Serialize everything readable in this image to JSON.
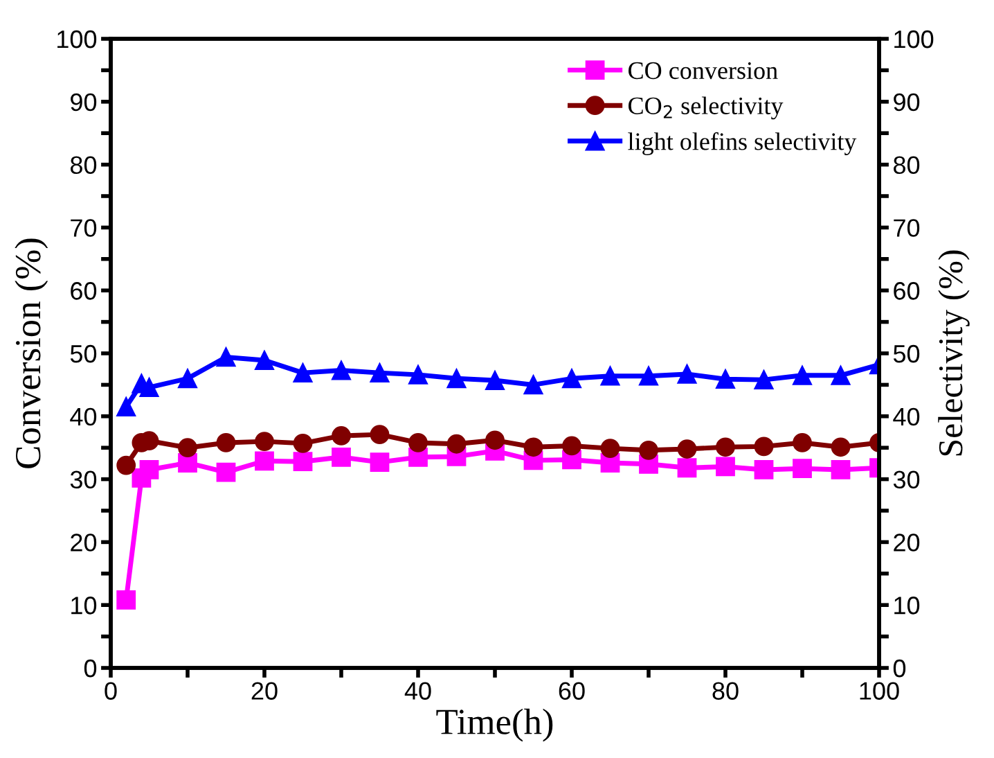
{
  "chart_data": {
    "type": "line",
    "xlabel": "Time(h)",
    "ylabel": "Conversion (%)",
    "y2label": "Selectivity (%)",
    "x": [
      2,
      4,
      5,
      10,
      15,
      20,
      25,
      30,
      35,
      40,
      45,
      50,
      55,
      60,
      65,
      70,
      75,
      80,
      85,
      90,
      95,
      100
    ],
    "series": [
      {
        "name": "CO conversion",
        "color": "#ff00ff",
        "marker": "square",
        "values": [
          10.8,
          30.2,
          31.5,
          32.6,
          31.1,
          32.9,
          32.8,
          33.5,
          32.7,
          33.5,
          33.6,
          34.5,
          33.0,
          33.1,
          32.6,
          32.4,
          31.8,
          32.0,
          31.5,
          31.7,
          31.5,
          31.8
        ]
      },
      {
        "name": "CO$_{2}$ selectivity",
        "color": "#800000",
        "marker": "circle",
        "axis": "y2",
        "values": [
          32.2,
          35.8,
          36.1,
          35.0,
          35.8,
          36.0,
          35.7,
          36.9,
          37.1,
          35.8,
          35.6,
          36.2,
          35.1,
          35.3,
          34.9,
          34.6,
          34.8,
          35.1,
          35.2,
          35.8,
          35.1,
          35.8
        ]
      },
      {
        "name": "light olefins selectivity",
        "color": "#0000ff",
        "marker": "triangle",
        "axis": "y2",
        "values": [
          41.5,
          45.2,
          44.6,
          46.0,
          49.4,
          48.9,
          46.9,
          47.3,
          46.9,
          46.6,
          46.0,
          45.7,
          45.0,
          46.0,
          46.4,
          46.4,
          46.7,
          45.9,
          45.8,
          46.5,
          46.5,
          48.2
        ]
      }
    ],
    "xlim": [
      0,
      100
    ],
    "xticks": [
      0,
      {
        "value": 10,
        "label": null
      },
      20,
      {
        "value": 30,
        "label": null
      },
      40,
      {
        "value": 50,
        "label": null
      },
      60,
      {
        "value": 70,
        "label": null
      },
      80,
      {
        "value": 90,
        "label": null
      },
      100
    ],
    "ylim": [
      0,
      100
    ],
    "yticks": [
      0,
      {
        "value": 5,
        "label": null
      },
      10,
      {
        "value": 15,
        "label": null
      },
      20,
      {
        "value": 25,
        "label": null
      },
      30,
      {
        "value": 35,
        "label": null
      },
      40,
      {
        "value": 45,
        "label": null
      },
      50,
      {
        "value": 55,
        "label": null
      },
      60,
      {
        "value": 65,
        "label": null
      },
      70,
      {
        "value": 75,
        "label": null
      },
      80,
      {
        "value": 85,
        "label": null
      },
      90,
      {
        "value": 95,
        "label": null
      },
      100
    ],
    "y2lim": [
      0,
      100
    ],
    "y2ticks": [
      0,
      {
        "value": 5,
        "label": null
      },
      10,
      {
        "value": 15,
        "label": null
      },
      20,
      {
        "value": 25,
        "label": null
      },
      30,
      {
        "value": 35,
        "label": null
      },
      40,
      {
        "value": 45,
        "label": null
      },
      50,
      {
        "value": 55,
        "label": null
      },
      60,
      {
        "value": 65,
        "label": null
      },
      70,
      {
        "value": 75,
        "label": null
      },
      80,
      {
        "value": 85,
        "label": null
      },
      90,
      {
        "value": 95,
        "label": null
      },
      100
    ],
    "grid": false,
    "legend": "top right",
    "line_style": "solid"
  }
}
